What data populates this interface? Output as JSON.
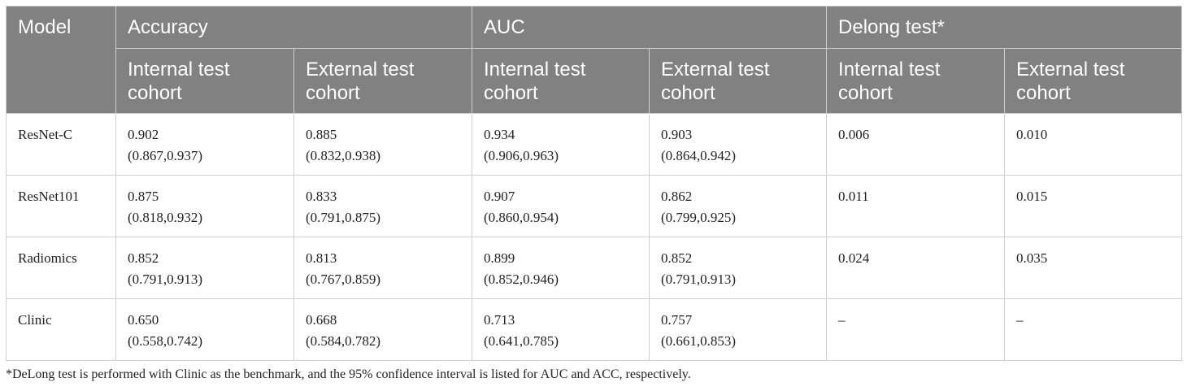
{
  "table": {
    "header": {
      "model": "Model",
      "groups": [
        "Accuracy",
        "AUC",
        "Delong test*"
      ],
      "sub": [
        "Internal test cohort",
        "External test cohort",
        "Internal test cohort",
        "External test cohort",
        "Internal test cohort",
        "External test cohort"
      ]
    },
    "rows": [
      {
        "model": "ResNet-C",
        "cells": [
          {
            "v": "0.902",
            "ci": "(0.867,0.937)"
          },
          {
            "v": "0.885",
            "ci": "(0.832,0.938)"
          },
          {
            "v": "0.934",
            "ci": "(0.906,0.963)"
          },
          {
            "v": "0.903",
            "ci": "(0.864,0.942)"
          },
          {
            "v": "0.006",
            "ci": ""
          },
          {
            "v": "0.010",
            "ci": ""
          }
        ]
      },
      {
        "model": "ResNet101",
        "cells": [
          {
            "v": "0.875",
            "ci": "(0.818,0.932)"
          },
          {
            "v": "0.833",
            "ci": "(0.791,0.875)"
          },
          {
            "v": "0.907",
            "ci": "(0.860,0.954)"
          },
          {
            "v": "0.862",
            "ci": "(0.799,0.925)"
          },
          {
            "v": "0.011",
            "ci": ""
          },
          {
            "v": "0.015",
            "ci": ""
          }
        ]
      },
      {
        "model": "Radiomics",
        "cells": [
          {
            "v": "0.852",
            "ci": "(0.791,0.913)"
          },
          {
            "v": "0.813",
            "ci": "(0.767,0.859)"
          },
          {
            "v": "0.899",
            "ci": "(0.852,0.946)"
          },
          {
            "v": "0.852",
            "ci": "(0.791,0.913)"
          },
          {
            "v": "0.024",
            "ci": ""
          },
          {
            "v": "0.035",
            "ci": ""
          }
        ]
      },
      {
        "model": "Clinic",
        "cells": [
          {
            "v": "0.650",
            "ci": "(0.558,0.742)"
          },
          {
            "v": "0.668",
            "ci": "(0.584,0.782)"
          },
          {
            "v": "0.713",
            "ci": "(0.641,0.785)"
          },
          {
            "v": "0.757",
            "ci": "(0.661,0.853)"
          },
          {
            "v": "–",
            "ci": ""
          },
          {
            "v": "–",
            "ci": ""
          }
        ]
      }
    ]
  },
  "footnote": "*DeLong test is performed with Clinic as the benchmark, and the 95% confidence interval is listed for AUC and ACC, respectively.",
  "colors": {
    "header_bg": "#818181",
    "header_text": "#ffffff",
    "grid": "#cfcfcf",
    "body_text": "#222222"
  }
}
